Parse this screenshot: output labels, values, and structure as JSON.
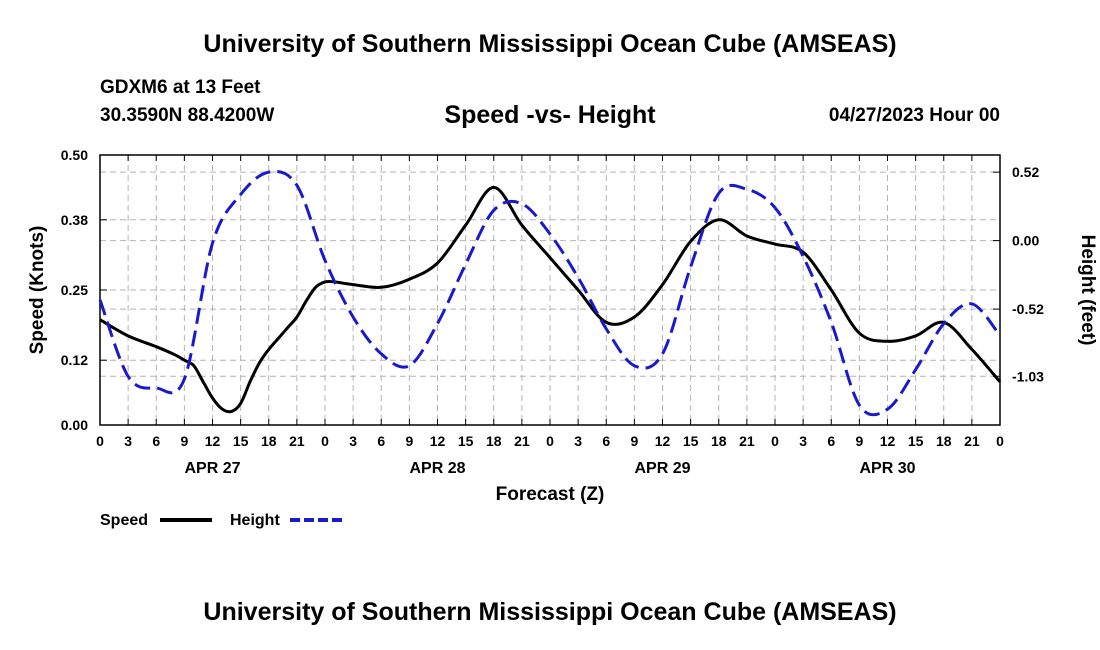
{
  "header": {
    "title": "University of Southern Mississippi Ocean Cube (AMSEAS)",
    "station": "GDXM6 at 13 Feet",
    "coords": "30.3590N  88.4200W",
    "subtitle": "Speed -vs- Height",
    "timestamp": "04/27/2023 Hour 00"
  },
  "footer": {
    "title": "University of Southern Mississippi Ocean Cube (AMSEAS)"
  },
  "chart_data": {
    "type": "line",
    "title": "Speed -vs- Height",
    "xlabel": "Forecast (Z)",
    "ylabel_left": "Speed (Knots)",
    "ylabel_right": "Height (feet)",
    "x_range": [
      0,
      96
    ],
    "ylim_left": [
      0,
      0.5
    ],
    "ylim_right": [
      -1.4,
      0.65
    ],
    "x_ticks": [
      0,
      3,
      6,
      9,
      12,
      15,
      18,
      21,
      24,
      27,
      30,
      33,
      36,
      39,
      42,
      45,
      48,
      51,
      54,
      57,
      60,
      63,
      66,
      69,
      72,
      75,
      78,
      81,
      84,
      87,
      90,
      93,
      96
    ],
    "x_tick_labels": [
      "0",
      "3",
      "6",
      "9",
      "12",
      "15",
      "18",
      "21",
      "0",
      "3",
      "6",
      "9",
      "12",
      "15",
      "18",
      "21",
      "0",
      "3",
      "6",
      "9",
      "12",
      "15",
      "18",
      "21",
      "0",
      "3",
      "6",
      "9",
      "12",
      "15",
      "18",
      "21",
      "0"
    ],
    "date_labels": [
      {
        "x": 12,
        "label": "APR 27"
      },
      {
        "x": 36,
        "label": "APR 28"
      },
      {
        "x": 60,
        "label": "APR 29"
      },
      {
        "x": 84,
        "label": "APR 30"
      }
    ],
    "y_left_ticks": [
      0.0,
      0.12,
      0.25,
      0.38,
      0.5
    ],
    "y_left_tick_labels": [
      "0.00",
      "0.12",
      "0.25",
      "0.38",
      "0.50"
    ],
    "y_right_ticks": [
      0.52,
      0.0,
      -0.52,
      -1.03
    ],
    "y_right_tick_labels": [
      "0.52",
      "0.00",
      "-0.52",
      "-1.03"
    ],
    "grid": true,
    "legend": "bottom-left",
    "series": [
      {
        "name": "Speed",
        "axis": "left",
        "color": "#000000",
        "dash": "solid",
        "x": [
          0,
          3,
          6,
          8,
          9,
          10,
          11,
          12,
          13,
          14,
          15,
          16,
          17,
          18,
          19,
          20,
          21,
          22,
          23,
          24,
          25,
          27,
          30,
          33,
          36,
          39,
          42,
          45,
          48,
          51,
          54,
          57,
          60,
          63,
          66,
          69,
          72,
          75,
          78,
          81,
          84,
          87,
          90,
          93,
          96
        ],
        "values": [
          0.195,
          0.165,
          0.145,
          0.13,
          0.12,
          0.11,
          0.08,
          0.05,
          0.03,
          0.025,
          0.04,
          0.08,
          0.115,
          0.14,
          0.16,
          0.18,
          0.2,
          0.23,
          0.255,
          0.265,
          0.265,
          0.26,
          0.255,
          0.27,
          0.3,
          0.37,
          0.44,
          0.37,
          0.31,
          0.25,
          0.19,
          0.2,
          0.26,
          0.34,
          0.38,
          0.35,
          0.335,
          0.32,
          0.25,
          0.17,
          0.155,
          0.165,
          0.19,
          0.14,
          0.08
        ]
      },
      {
        "name": "Height",
        "axis": "right",
        "color": "#1a1acc",
        "dash": "dashed",
        "x": [
          0,
          3,
          6,
          9,
          12,
          15,
          18,
          21,
          24,
          27,
          30,
          33,
          36,
          39,
          42,
          45,
          48,
          51,
          54,
          57,
          60,
          63,
          66,
          69,
          72,
          75,
          78,
          81,
          84,
          87,
          90,
          93,
          96
        ],
        "values": [
          -0.45,
          -1.03,
          -1.12,
          -1.05,
          -0.02,
          0.35,
          0.52,
          0.42,
          -0.15,
          -0.58,
          -0.86,
          -0.95,
          -0.63,
          -0.18,
          0.23,
          0.28,
          0.05,
          -0.28,
          -0.67,
          -0.95,
          -0.86,
          -0.2,
          0.36,
          0.39,
          0.25,
          -0.12,
          -0.62,
          -1.25,
          -1.28,
          -0.98,
          -0.63,
          -0.48,
          -0.72
        ]
      }
    ]
  }
}
